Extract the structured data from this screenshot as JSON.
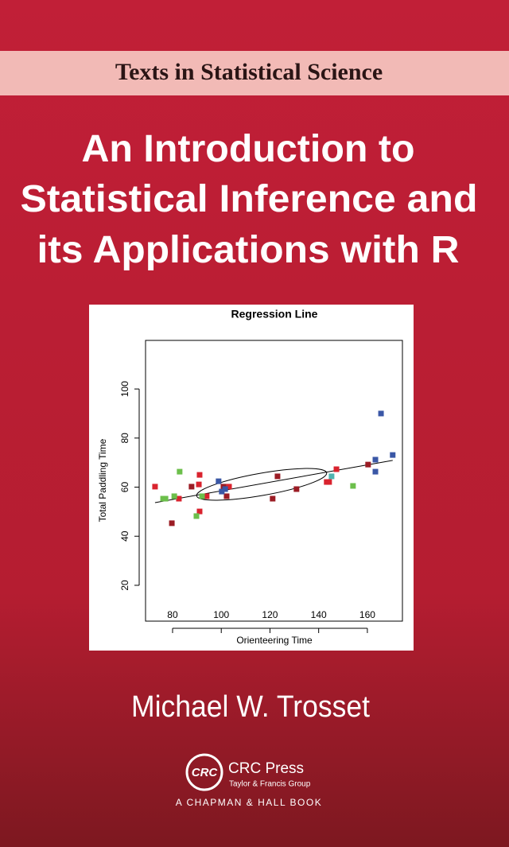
{
  "series_name": "Texts in Statistical Science",
  "title_lines": [
    "An Introduction to",
    "Statistical Inference and",
    "its Applications with R"
  ],
  "author": "Michael W. Trosset",
  "publisher": {
    "logo": "CRC",
    "name": "CRC Press",
    "group": "Taylor & Francis Group",
    "imprint": "A CHAPMAN & HALL BOOK"
  },
  "chart_data": {
    "type": "scatter",
    "title": "Regression Line",
    "x_label": "Orienteering Time",
    "y_label": "Total Paddling Time",
    "xlim": [
      68.9,
      174.4
    ],
    "ylim": [
      5.4,
      119.8
    ],
    "xticks": [
      80,
      100,
      120,
      140,
      160
    ],
    "yticks": [
      20,
      40,
      60,
      80,
      100
    ],
    "series": [
      {
        "color": "#d9232e",
        "x": [
          72.8,
          91.1,
          90.8,
          91.1,
          82.6,
          94.0,
          143.3,
          144.3,
          147.3,
          103.2
        ],
        "values": [
          60.2,
          65.0,
          61.1,
          50.1,
          55.3,
          56.3,
          62.1,
          62.1,
          67.3,
          60.2
        ]
      },
      {
        "color": "#9b1c24",
        "x": [
          79.7,
          87.8,
          123.1,
          121.1,
          130.9,
          102.2,
          160.3,
          100.9
        ],
        "values": [
          45.3,
          60.2,
          64.4,
          55.3,
          59.2,
          56.3,
          69.2,
          60.2
        ]
      },
      {
        "color": "#6cbf4b",
        "x": [
          76.1,
          77.1,
          80.7,
          82.9,
          89.8,
          92.1,
          154.1
        ],
        "values": [
          55.3,
          55.3,
          56.3,
          66.3,
          48.2,
          56.3,
          60.5
        ]
      },
      {
        "color": "#3a57a6",
        "x": [
          98.9,
          100.2,
          101.6,
          163.3,
          165.6,
          163.3,
          170.4
        ],
        "values": [
          62.4,
          58.2,
          59.2,
          71.2,
          90.0,
          66.3,
          73.1
        ]
      },
      {
        "color": "#4fb3b0",
        "x": [
          145.3
        ],
        "values": [
          64.4
        ]
      }
    ],
    "fit_line": {
      "x": [
        72.8,
        170.4
      ],
      "values": [
        53.7,
        70.9
      ]
    }
  }
}
